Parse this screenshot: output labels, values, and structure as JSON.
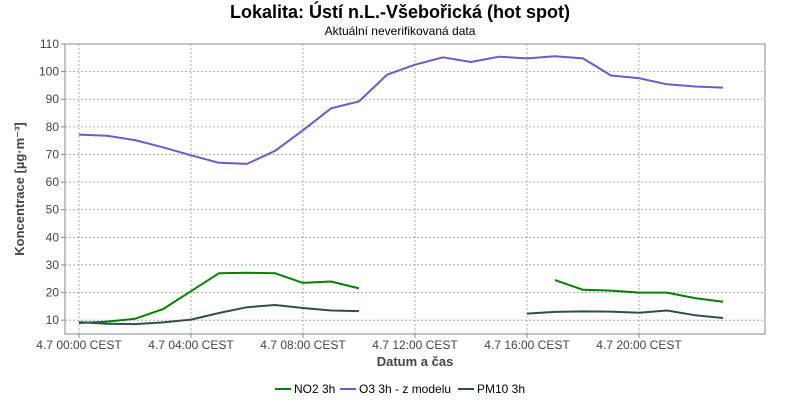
{
  "chart_data": {
    "type": "line",
    "title": "Lokalita: Ústí n.L.-Všebořická (hot spot)",
    "subtitle": "Aktuální neverifikovaná data",
    "xlabel": "Datum a čas",
    "ylabel": "Koncentrace [µg·m⁻³]",
    "ylim": [
      5,
      110
    ],
    "xlim": [
      -0.5,
      24.5
    ],
    "y_ticks": [
      10,
      20,
      30,
      40,
      50,
      60,
      70,
      80,
      90,
      100,
      110
    ],
    "x_ticks": [
      {
        "x": 0,
        "label": "4.7 00:00 CEST"
      },
      {
        "x": 4,
        "label": "4.7 04:00 CEST"
      },
      {
        "x": 8,
        "label": "4.7 08:00 CEST"
      },
      {
        "x": 12,
        "label": "4.7 12:00 CEST"
      },
      {
        "x": 16,
        "label": "4.7 16:00 CEST"
      },
      {
        "x": 20,
        "label": "4.7 20:00 CEST"
      }
    ],
    "grid": true,
    "legend_position": "bottom",
    "series": [
      {
        "name": "NO2 3h",
        "color": "#008000",
        "x": [
          0,
          1,
          2,
          3,
          4,
          5,
          6,
          7,
          8,
          9,
          10,
          17,
          18,
          19,
          20,
          21,
          22,
          23
        ],
        "values": [
          9,
          9.5,
          10.5,
          14,
          20.5,
          27,
          27.2,
          27,
          23.5,
          24,
          21.5,
          24.5,
          21,
          20.7,
          20,
          20,
          18,
          16.7
        ],
        "segments": [
          [
            0,
            10
          ],
          [
            17,
            23
          ]
        ]
      },
      {
        "name": "O3 3h - z modelu",
        "color": "#6a5acd",
        "x": [
          0,
          1,
          2,
          3,
          4,
          5,
          6,
          7,
          8,
          9,
          10,
          11,
          12,
          13,
          14,
          15,
          16,
          17,
          18,
          19,
          20,
          21,
          22,
          23
        ],
        "values": [
          77.2,
          76.8,
          75.2,
          72.6,
          69.7,
          67,
          66.6,
          71.3,
          78.8,
          86.7,
          89.2,
          98.9,
          102.5,
          105.2,
          103.5,
          105.4,
          104.8,
          105.6,
          104.8,
          98.6,
          97.6,
          95.4,
          94.6,
          94.2
        ],
        "segments": [
          [
            0,
            23
          ]
        ]
      },
      {
        "name": "PM10 3h",
        "color": "#2f4f4f",
        "x": [
          0,
          1,
          2,
          3,
          4,
          5,
          6,
          7,
          8,
          9,
          10,
          16,
          17,
          18,
          19,
          20,
          21,
          22,
          23
        ],
        "values": [
          9.3,
          8.7,
          8.6,
          9.2,
          10.2,
          12.6,
          14.7,
          15.5,
          14.4,
          13.5,
          13.3,
          12.4,
          13,
          13.2,
          13.1,
          12.7,
          13.5,
          11.8,
          10.8
        ],
        "segments": [
          [
            0,
            10
          ],
          [
            16,
            23
          ]
        ]
      }
    ]
  }
}
